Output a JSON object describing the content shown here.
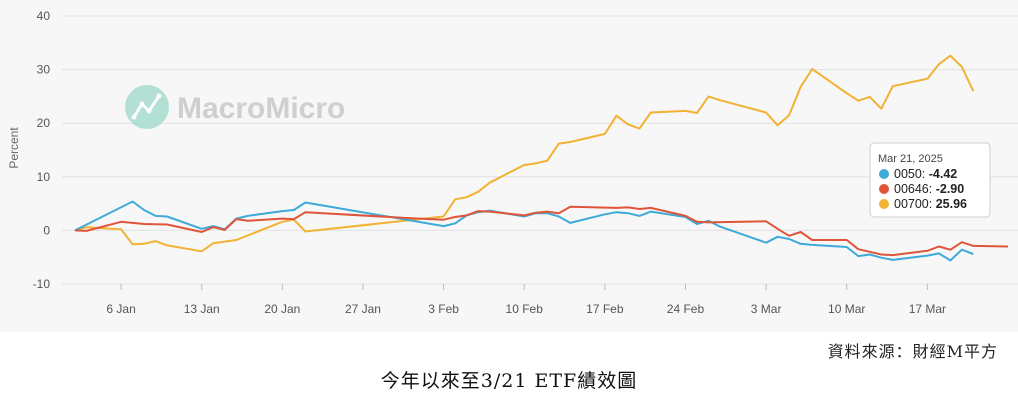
{
  "source_text": "資料來源：財經M平方",
  "caption": "今年以來至3/21 ETF績效圖",
  "watermark": "MacroMicro",
  "chart_data": {
    "type": "line",
    "ylabel": "Percent",
    "ylim": [
      -10,
      40
    ],
    "yticks": [
      -10,
      0,
      10,
      20,
      30,
      40
    ],
    "grid": true,
    "xdomain": [
      "2025-01-02",
      "2025-03-24"
    ],
    "xticks": [
      {
        "date": "2025-01-06",
        "label": "6 Jan"
      },
      {
        "date": "2025-01-13",
        "label": "13 Jan"
      },
      {
        "date": "2025-01-20",
        "label": "20 Jan"
      },
      {
        "date": "2025-01-27",
        "label": "27 Jan"
      },
      {
        "date": "2025-02-03",
        "label": "3 Feb"
      },
      {
        "date": "2025-02-10",
        "label": "10 Feb"
      },
      {
        "date": "2025-02-17",
        "label": "17 Feb"
      },
      {
        "date": "2025-02-24",
        "label": "24 Feb"
      },
      {
        "date": "2025-03-03",
        "label": "3 Mar"
      },
      {
        "date": "2025-03-10",
        "label": "10 Mar"
      },
      {
        "date": "2025-03-17",
        "label": "17 Mar"
      }
    ],
    "series": [
      {
        "name": "0050",
        "color": "#3daad8",
        "points": [
          [
            "2025-01-02",
            0
          ],
          [
            "2025-01-07",
            5.4
          ],
          [
            "2025-01-08",
            3.8
          ],
          [
            "2025-01-09",
            2.7
          ],
          [
            "2025-01-10",
            2.6
          ],
          [
            "2025-01-13",
            0.3
          ],
          [
            "2025-01-14",
            0.8
          ],
          [
            "2025-01-15",
            0.2
          ],
          [
            "2025-01-16",
            2.2
          ],
          [
            "2025-01-17",
            2.7
          ],
          [
            "2025-01-20",
            3.6
          ],
          [
            "2025-01-21",
            3.8
          ],
          [
            "2025-01-22",
            5.2
          ],
          [
            "2025-02-03",
            0.8
          ],
          [
            "2025-02-04",
            1.3
          ],
          [
            "2025-02-05",
            2.8
          ],
          [
            "2025-02-06",
            3.4
          ],
          [
            "2025-02-07",
            3.7
          ],
          [
            "2025-02-10",
            2.6
          ],
          [
            "2025-02-11",
            3.2
          ],
          [
            "2025-02-12",
            3.2
          ],
          [
            "2025-02-13",
            2.6
          ],
          [
            "2025-02-14",
            1.4
          ],
          [
            "2025-02-17",
            3.0
          ],
          [
            "2025-02-18",
            3.4
          ],
          [
            "2025-02-19",
            3.2
          ],
          [
            "2025-02-20",
            2.7
          ],
          [
            "2025-02-21",
            3.5
          ],
          [
            "2025-02-24",
            2.5
          ],
          [
            "2025-02-25",
            1.2
          ],
          [
            "2025-02-26",
            1.8
          ],
          [
            "2025-02-27",
            0.7
          ],
          [
            "2025-03-03",
            -2.3
          ],
          [
            "2025-03-04",
            -1.2
          ],
          [
            "2025-03-05",
            -1.6
          ],
          [
            "2025-03-06",
            -2.5
          ],
          [
            "2025-03-07",
            -2.7
          ],
          [
            "2025-03-10",
            -3.1
          ],
          [
            "2025-03-11",
            -4.8
          ],
          [
            "2025-03-12",
            -4.5
          ],
          [
            "2025-03-13",
            -5.1
          ],
          [
            "2025-03-14",
            -5.5
          ],
          [
            "2025-03-17",
            -4.7
          ],
          [
            "2025-03-18",
            -4.3
          ],
          [
            "2025-03-19",
            -5.6
          ],
          [
            "2025-03-20",
            -3.6
          ],
          [
            "2025-03-21",
            -4.42
          ]
        ]
      },
      {
        "name": "00646",
        "color": "#e0553a",
        "points": [
          [
            "2025-01-02",
            0
          ],
          [
            "2025-01-03",
            -0.1
          ],
          [
            "2025-01-06",
            1.6
          ],
          [
            "2025-01-07",
            1.4
          ],
          [
            "2025-01-08",
            1.2
          ],
          [
            "2025-01-10",
            1.1
          ],
          [
            "2025-01-13",
            -0.3
          ],
          [
            "2025-01-14",
            0.6
          ],
          [
            "2025-01-15",
            0.1
          ],
          [
            "2025-01-16",
            2.1
          ],
          [
            "2025-01-17",
            1.8
          ],
          [
            "2025-01-20",
            2.2
          ],
          [
            "2025-01-21",
            2.1
          ],
          [
            "2025-01-22",
            3.4
          ],
          [
            "2025-01-31",
            2.3
          ],
          [
            "2025-02-03",
            2.0
          ],
          [
            "2025-02-04",
            2.5
          ],
          [
            "2025-02-05",
            2.8
          ],
          [
            "2025-02-06",
            3.6
          ],
          [
            "2025-02-07",
            3.5
          ],
          [
            "2025-02-10",
            2.8
          ],
          [
            "2025-02-11",
            3.3
          ],
          [
            "2025-02-12",
            3.5
          ],
          [
            "2025-02-13",
            3.2
          ],
          [
            "2025-02-14",
            4.4
          ],
          [
            "2025-02-18",
            4.2
          ],
          [
            "2025-02-19",
            4.3
          ],
          [
            "2025-02-20",
            4.0
          ],
          [
            "2025-02-21",
            4.2
          ],
          [
            "2025-02-24",
            2.7
          ],
          [
            "2025-02-25",
            1.6
          ],
          [
            "2025-02-26",
            1.5
          ],
          [
            "2025-03-03",
            1.7
          ],
          [
            "2025-03-04",
            0.3
          ],
          [
            "2025-03-05",
            -1.0
          ],
          [
            "2025-03-06",
            -0.3
          ],
          [
            "2025-03-07",
            -1.8
          ],
          [
            "2025-03-10",
            -1.8
          ],
          [
            "2025-03-11",
            -3.5
          ],
          [
            "2025-03-12",
            -4.0
          ],
          [
            "2025-03-13",
            -4.5
          ],
          [
            "2025-03-14",
            -4.6
          ],
          [
            "2025-03-17",
            -3.8
          ],
          [
            "2025-03-18",
            -3.0
          ],
          [
            "2025-03-19",
            -3.6
          ],
          [
            "2025-03-20",
            -2.2
          ],
          [
            "2025-03-21",
            -2.9
          ],
          [
            "2025-03-24",
            -3.0
          ]
        ]
      },
      {
        "name": "00700",
        "color": "#f2b233",
        "points": [
          [
            "2025-01-02",
            0
          ],
          [
            "2025-01-03",
            0.6
          ],
          [
            "2025-01-06",
            0.2
          ],
          [
            "2025-01-07",
            -2.6
          ],
          [
            "2025-01-08",
            -2.5
          ],
          [
            "2025-01-09",
            -2.0
          ],
          [
            "2025-01-10",
            -2.8
          ],
          [
            "2025-01-13",
            -3.9
          ],
          [
            "2025-01-14",
            -2.4
          ],
          [
            "2025-01-16",
            -1.8
          ],
          [
            "2025-01-20",
            1.6
          ],
          [
            "2025-01-21",
            2.0
          ],
          [
            "2025-01-22",
            -0.2
          ],
          [
            "2025-02-03",
            2.6
          ],
          [
            "2025-02-04",
            5.8
          ],
          [
            "2025-02-05",
            6.2
          ],
          [
            "2025-02-06",
            7.2
          ],
          [
            "2025-02-07",
            8.9
          ],
          [
            "2025-02-10",
            12.2
          ],
          [
            "2025-02-11",
            12.5
          ],
          [
            "2025-02-12",
            13.0
          ],
          [
            "2025-02-13",
            16.2
          ],
          [
            "2025-02-14",
            16.5
          ],
          [
            "2025-02-17",
            18.0
          ],
          [
            "2025-02-18",
            21.4
          ],
          [
            "2025-02-19",
            19.8
          ],
          [
            "2025-02-20",
            19.0
          ],
          [
            "2025-02-21",
            22.0
          ],
          [
            "2025-02-24",
            22.3
          ],
          [
            "2025-02-25",
            21.9
          ],
          [
            "2025-02-26",
            25.0
          ],
          [
            "2025-02-27",
            24.3
          ],
          [
            "2025-03-03",
            22.0
          ],
          [
            "2025-03-04",
            19.6
          ],
          [
            "2025-03-05",
            21.5
          ],
          [
            "2025-03-06",
            26.8
          ],
          [
            "2025-03-07",
            30.1
          ],
          [
            "2025-03-10",
            25.6
          ],
          [
            "2025-03-11",
            24.2
          ],
          [
            "2025-03-12",
            24.9
          ],
          [
            "2025-03-13",
            22.7
          ],
          [
            "2025-03-14",
            26.9
          ],
          [
            "2025-03-17",
            28.3
          ],
          [
            "2025-03-18",
            31.0
          ],
          [
            "2025-03-19",
            32.6
          ],
          [
            "2025-03-20",
            30.5
          ],
          [
            "2025-03-21",
            25.96
          ]
        ]
      }
    ]
  },
  "tooltip": {
    "date": "Mar 21, 2025",
    "rows": [
      {
        "name": "0050",
        "value": "-4.42",
        "color": "#3daad8"
      },
      {
        "name": "00646",
        "value": "-2.90",
        "color": "#e0553a"
      },
      {
        "name": "00700",
        "value": "25.96",
        "color": "#f2b233"
      }
    ]
  }
}
